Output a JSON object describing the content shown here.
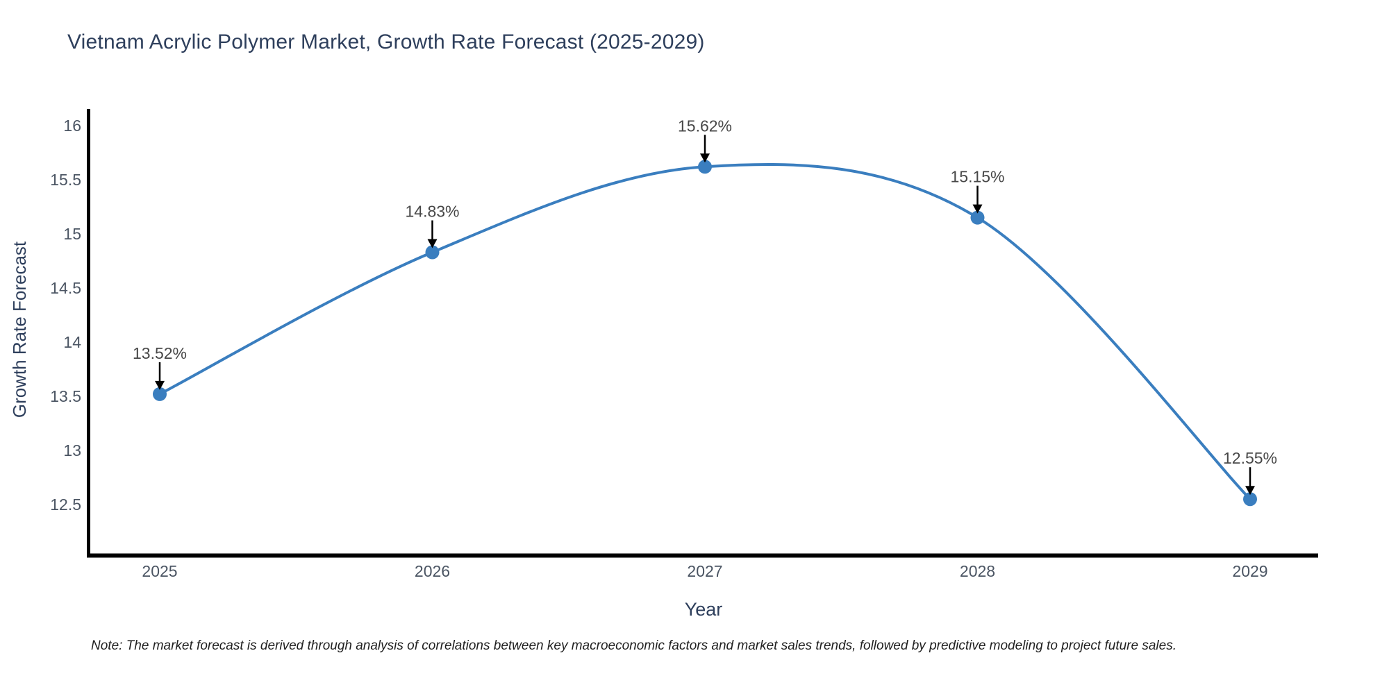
{
  "title": "Vietnam Acrylic Polymer Market, Growth Rate Forecast (2025-2029)",
  "note": "Note: The market forecast is derived through analysis of correlations between key macroeconomic factors and market sales trends, followed by predictive modeling to project future sales.",
  "chart_data": {
    "type": "line",
    "title": "Vietnam Acrylic Polymer Market, Growth Rate Forecast (2025-2029)",
    "xlabel": "Year",
    "ylabel": "Growth Rate Forecast",
    "categories": [
      2025,
      2026,
      2027,
      2028,
      2029
    ],
    "values": [
      13.52,
      14.83,
      15.62,
      15.15,
      12.55
    ],
    "point_labels": [
      "13.52%",
      "14.83%",
      "15.62%",
      "15.15%",
      "12.55%"
    ],
    "y_ticks": [
      16,
      15.5,
      15,
      14.5,
      14,
      13.5,
      13,
      12.5
    ],
    "ylim": [
      12.03,
      16.13
    ],
    "line_shape": "spline",
    "grid": false,
    "legend": "none",
    "annotation_arrows": "black, pointing down onto each marker",
    "colors": {
      "line": "#3a7ebf",
      "marker": "#3a7ebf",
      "axis": "#000000",
      "title_text": "#2e3f5c",
      "tick_text": "#4b5563",
      "annotation_text": "#474747",
      "note_text": "#1f1f1f",
      "background": "#ffffff"
    }
  }
}
